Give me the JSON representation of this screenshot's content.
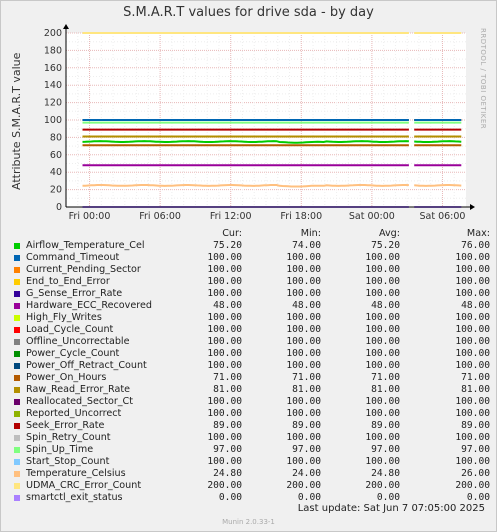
{
  "chart_data": {
    "type": "line",
    "title": "S.M.A.R.T values for drive sda - by day",
    "ylabel": "Attribute S.M.A.R.T value",
    "ylim": [
      0,
      200
    ],
    "yticks": [
      0,
      20,
      40,
      60,
      80,
      100,
      120,
      140,
      160,
      180,
      200
    ],
    "xlim_hours": [
      -2,
      32
    ],
    "xticks": [
      {
        "label": "Fri 00:00",
        "h": 0
      },
      {
        "label": "Fri 06:00",
        "h": 6
      },
      {
        "label": "Fri 12:00",
        "h": 12
      },
      {
        "label": "Fri 18:00",
        "h": 18
      },
      {
        "label": "Sat 00:00",
        "h": 24
      },
      {
        "label": "Sat 06:00",
        "h": 30
      }
    ],
    "grid": true,
    "gap_hours": [
      27.3,
      27.6
    ],
    "columns": {
      "cur": "Cur:",
      "min": "Min:",
      "avg": "Avg:",
      "max": "Max:"
    },
    "series": [
      {
        "name": "Airflow_Temperature_Cel",
        "color": "#00cc00",
        "cur": "75.20",
        "min": "74.00",
        "avg": "75.20",
        "max": "76.00",
        "value": 75.2
      },
      {
        "name": "Command_Timeout",
        "color": "#0066b3",
        "cur": "100.00",
        "min": "100.00",
        "avg": "100.00",
        "max": "100.00",
        "value": 100
      },
      {
        "name": "Current_Pending_Sector",
        "color": "#ff8000",
        "cur": "100.00",
        "min": "100.00",
        "avg": "100.00",
        "max": "100.00",
        "value": 100
      },
      {
        "name": "End_to_End_Error",
        "color": "#ffcc00",
        "cur": "100.00",
        "min": "100.00",
        "avg": "100.00",
        "max": "100.00",
        "value": 100
      },
      {
        "name": "G_Sense_Error_Rate",
        "color": "#330099",
        "cur": "100.00",
        "min": "100.00",
        "avg": "100.00",
        "max": "100.00",
        "value": 100
      },
      {
        "name": "Hardware_ECC_Recovered",
        "color": "#990099",
        "cur": "48.00",
        "min": "48.00",
        "avg": "48.00",
        "max": "48.00",
        "value": 48
      },
      {
        "name": "High_Fly_Writes",
        "color": "#ccff00",
        "cur": "100.00",
        "min": "100.00",
        "avg": "100.00",
        "max": "100.00",
        "value": 100
      },
      {
        "name": "Load_Cycle_Count",
        "color": "#ff0000",
        "cur": "100.00",
        "min": "100.00",
        "avg": "100.00",
        "max": "100.00",
        "value": 100
      },
      {
        "name": "Offline_Uncorrectable",
        "color": "#808080",
        "cur": "100.00",
        "min": "100.00",
        "avg": "100.00",
        "max": "100.00",
        "value": 100
      },
      {
        "name": "Power_Cycle_Count",
        "color": "#008f00",
        "cur": "100.00",
        "min": "100.00",
        "avg": "100.00",
        "max": "100.00",
        "value": 100
      },
      {
        "name": "Power_Off_Retract_Count",
        "color": "#00487d",
        "cur": "100.00",
        "min": "100.00",
        "avg": "100.00",
        "max": "100.00",
        "value": 100
      },
      {
        "name": "Power_On_Hours",
        "color": "#b35a00",
        "cur": "71.00",
        "min": "71.00",
        "avg": "71.00",
        "max": "71.00",
        "value": 71
      },
      {
        "name": "Raw_Read_Error_Rate",
        "color": "#b38f00",
        "cur": "81.00",
        "min": "81.00",
        "avg": "81.00",
        "max": "81.00",
        "value": 81
      },
      {
        "name": "Reallocated_Sector_Ct",
        "color": "#6b006b",
        "cur": "100.00",
        "min": "100.00",
        "avg": "100.00",
        "max": "100.00",
        "value": 100
      },
      {
        "name": "Reported_Uncorrect",
        "color": "#8fb300",
        "cur": "100.00",
        "min": "100.00",
        "avg": "100.00",
        "max": "100.00",
        "value": 100
      },
      {
        "name": "Seek_Error_Rate",
        "color": "#b30000",
        "cur": "89.00",
        "min": "89.00",
        "avg": "89.00",
        "max": "89.00",
        "value": 89
      },
      {
        "name": "Spin_Retry_Count",
        "color": "#bebebe",
        "cur": "100.00",
        "min": "100.00",
        "avg": "100.00",
        "max": "100.00",
        "value": 100
      },
      {
        "name": "Spin_Up_Time",
        "color": "#80ff80",
        "cur": "97.00",
        "min": "97.00",
        "avg": "97.00",
        "max": "97.00",
        "value": 97
      },
      {
        "name": "Start_Stop_Count",
        "color": "#80c9ff",
        "cur": "100.00",
        "min": "100.00",
        "avg": "100.00",
        "max": "100.00",
        "value": 100
      },
      {
        "name": "Temperature_Celsius",
        "color": "#ffc080",
        "cur": "24.80",
        "min": "24.00",
        "avg": "24.80",
        "max": "26.00",
        "value": 24.8
      },
      {
        "name": "UDMA_CRC_Error_Count",
        "color": "#ffe680",
        "cur": "200.00",
        "min": "200.00",
        "avg": "200.00",
        "max": "200.00",
        "value": 200
      },
      {
        "name": "smartctl_exit_status",
        "color": "#aa80ff",
        "cur": "0.00",
        "min": "0.00",
        "avg": "0.00",
        "max": "0.00",
        "value": 0
      }
    ]
  },
  "vendor_text": "RRDTOOL / TOBI OETIKER",
  "last_update": "Last update:  Sat Jun  7 07:05:00 2025",
  "footer": "Munin 2.0.33-1"
}
